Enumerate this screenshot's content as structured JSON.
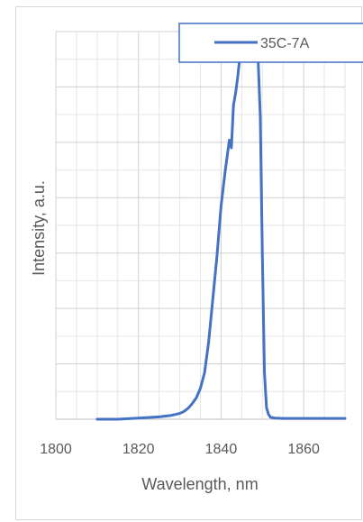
{
  "chart_data": {
    "type": "line",
    "xlabel": "Wavelength, nm",
    "ylabel": "Intensity, a.u.",
    "xlim": [
      1800,
      1870
    ],
    "ylim": [
      0,
      1
    ],
    "x_ticks": [
      1800,
      1820,
      1840,
      1860
    ],
    "x_minor_step": 5,
    "y_gridlines": 14,
    "grid": true,
    "y_tick_labels": false,
    "legend": "top-right",
    "color": "#4472c4",
    "series": [
      {
        "name": "35C-7A",
        "x": [
          1810,
          1815,
          1820,
          1825,
          1828,
          1830,
          1831,
          1832,
          1833,
          1834,
          1835,
          1836,
          1837,
          1838,
          1839,
          1840,
          1841,
          1842,
          1842.5,
          1843,
          1843.5,
          1844,
          1844.5,
          1845,
          1845.5,
          1846,
          1846.5,
          1847,
          1847.5,
          1848,
          1848.5,
          1849,
          1849.5,
          1850,
          1850.5,
          1851,
          1851.5,
          1852,
          1853,
          1855,
          1860,
          1865,
          1870
        ],
        "y": [
          0.0,
          0.0,
          0.003,
          0.006,
          0.01,
          0.015,
          0.02,
          0.028,
          0.04,
          0.055,
          0.08,
          0.12,
          0.2,
          0.31,
          0.42,
          0.55,
          0.64,
          0.72,
          0.7,
          0.81,
          0.84,
          0.88,
          0.93,
          0.925,
          0.96,
          0.985,
          0.995,
          1.0,
          0.985,
          0.995,
          0.98,
          0.92,
          0.78,
          0.42,
          0.12,
          0.03,
          0.012,
          0.005,
          0.003,
          0.002,
          0.002,
          0.002,
          0.002
        ]
      }
    ]
  }
}
